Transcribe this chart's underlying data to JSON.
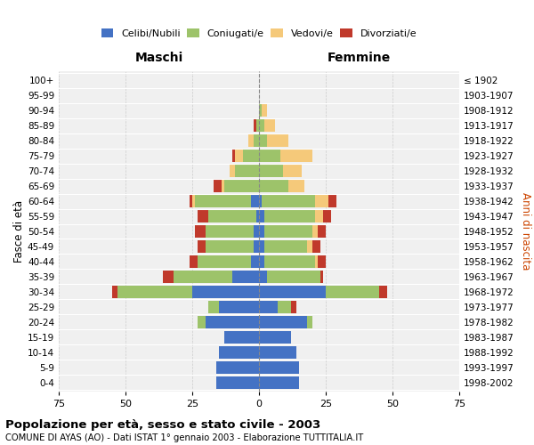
{
  "age_groups": [
    "0-4",
    "5-9",
    "10-14",
    "15-19",
    "20-24",
    "25-29",
    "30-34",
    "35-39",
    "40-44",
    "45-49",
    "50-54",
    "55-59",
    "60-64",
    "65-69",
    "70-74",
    "75-79",
    "80-84",
    "85-89",
    "90-94",
    "95-99",
    "100+"
  ],
  "birth_years": [
    "1998-2002",
    "1993-1997",
    "1988-1992",
    "1983-1987",
    "1978-1982",
    "1973-1977",
    "1968-1972",
    "1963-1967",
    "1958-1962",
    "1953-1957",
    "1948-1952",
    "1943-1947",
    "1938-1942",
    "1933-1937",
    "1928-1932",
    "1923-1927",
    "1918-1922",
    "1913-1917",
    "1908-1912",
    "1903-1907",
    "≤ 1902"
  ],
  "males": {
    "celibi": [
      16,
      16,
      15,
      13,
      20,
      15,
      25,
      10,
      3,
      2,
      2,
      1,
      3,
      0,
      0,
      0,
      0,
      0,
      0,
      0,
      0
    ],
    "coniugati": [
      0,
      0,
      0,
      0,
      3,
      4,
      28,
      22,
      20,
      18,
      18,
      18,
      21,
      13,
      9,
      6,
      2,
      1,
      0,
      0,
      0
    ],
    "vedovi": [
      0,
      0,
      0,
      0,
      0,
      0,
      0,
      0,
      0,
      0,
      0,
      0,
      1,
      1,
      2,
      3,
      2,
      0,
      0,
      0,
      0
    ],
    "divorziati": [
      0,
      0,
      0,
      0,
      0,
      0,
      2,
      4,
      3,
      3,
      4,
      4,
      1,
      3,
      0,
      1,
      0,
      1,
      0,
      0,
      0
    ]
  },
  "females": {
    "nubili": [
      15,
      15,
      14,
      12,
      18,
      7,
      25,
      3,
      2,
      2,
      2,
      2,
      1,
      0,
      0,
      0,
      0,
      0,
      0,
      0,
      0
    ],
    "coniugate": [
      0,
      0,
      0,
      0,
      2,
      5,
      20,
      20,
      19,
      16,
      18,
      19,
      20,
      11,
      9,
      8,
      3,
      2,
      1,
      0,
      0
    ],
    "vedove": [
      0,
      0,
      0,
      0,
      0,
      0,
      0,
      0,
      1,
      2,
      2,
      3,
      5,
      6,
      7,
      12,
      8,
      4,
      2,
      0,
      0
    ],
    "divorziate": [
      0,
      0,
      0,
      0,
      0,
      2,
      3,
      1,
      3,
      3,
      3,
      3,
      3,
      0,
      0,
      0,
      0,
      0,
      0,
      0,
      0
    ]
  },
  "colors": {
    "celibi": "#4472C4",
    "coniugati": "#9DC36A",
    "vedovi": "#F5C97A",
    "divorziati": "#C0392B"
  },
  "xlim": 75,
  "title": "Popolazione per età, sesso e stato civile - 2003",
  "subtitle": "COMUNE DI AYAS (AO) - Dati ISTAT 1° gennaio 2003 - Elaborazione TUTTITALIA.IT",
  "xlabel_left": "Maschi",
  "xlabel_right": "Femmine",
  "ylabel_left": "Fasce di età",
  "ylabel_right": "Anni di nascita",
  "bg_color": "#FFFFFF",
  "grid_color": "#CCCCCC"
}
